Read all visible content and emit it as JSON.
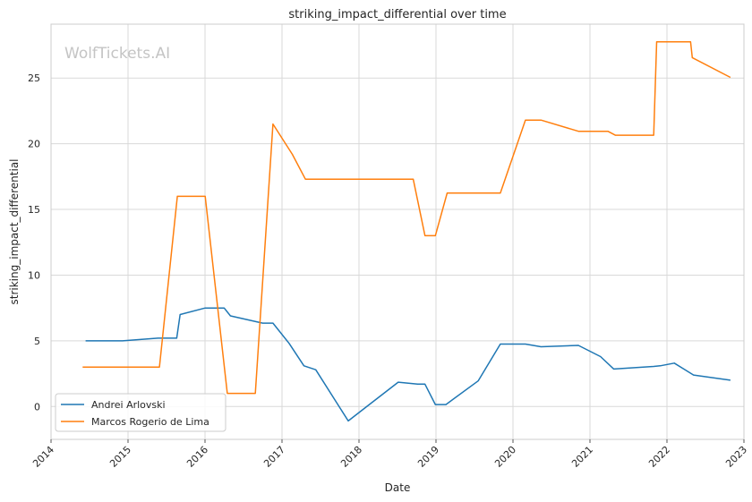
{
  "chart_data": {
    "type": "line",
    "title": "striking_impact_differential over time",
    "xlabel": "Date",
    "ylabel": "striking_impact_differential",
    "watermark": "WolfTickets.AI",
    "xlim": [
      "2014-01-01",
      "2023-01-01"
    ],
    "ylim": [
      -2.5,
      29.1
    ],
    "x_ticks": [
      "2014",
      "2015",
      "2016",
      "2017",
      "2018",
      "2019",
      "2020",
      "2021",
      "2022",
      "2023"
    ],
    "y_ticks": [
      0,
      5,
      10,
      15,
      20,
      25
    ],
    "grid": true,
    "legend_position": "lower-left",
    "series": [
      {
        "name": "Andrei Arlovski",
        "color": "#1f77b4",
        "points": [
          [
            "2014-06-14",
            5.0
          ],
          [
            "2014-12-06",
            5.0
          ],
          [
            "2015-05-23",
            5.2
          ],
          [
            "2015-08-20",
            5.2
          ],
          [
            "2015-09-05",
            7.0
          ],
          [
            "2016-01-02",
            7.5
          ],
          [
            "2016-04-01",
            7.5
          ],
          [
            "2016-05-01",
            6.9
          ],
          [
            "2016-10-01",
            6.35
          ],
          [
            "2016-11-19",
            6.35
          ],
          [
            "2017-02-04",
            4.8
          ],
          [
            "2017-04-15",
            3.1
          ],
          [
            "2017-06-10",
            2.8
          ],
          [
            "2017-11-11",
            -1.1
          ],
          [
            "2018-03-03",
            0.3
          ],
          [
            "2018-07-06",
            1.85
          ],
          [
            "2018-10-06",
            1.7
          ],
          [
            "2018-11-10",
            1.7
          ],
          [
            "2018-12-29",
            0.15
          ],
          [
            "2019-02-17",
            0.15
          ],
          [
            "2019-07-20",
            1.95
          ],
          [
            "2019-11-02",
            4.75
          ],
          [
            "2020-02-29",
            4.75
          ],
          [
            "2020-05-13",
            4.55
          ],
          [
            "2020-11-07",
            4.65
          ],
          [
            "2021-02-20",
            3.8
          ],
          [
            "2021-04-24",
            2.85
          ],
          [
            "2021-10-30",
            3.05
          ],
          [
            "2021-11-30",
            3.1
          ],
          [
            "2022-02-05",
            3.3
          ],
          [
            "2022-05-07",
            2.4
          ],
          [
            "2022-10-29",
            2.0
          ]
        ]
      },
      {
        "name": "Marcos Rogerio de Lima",
        "color": "#ff7f0e",
        "points": [
          [
            "2014-05-31",
            3.0
          ],
          [
            "2015-05-30",
            3.0
          ],
          [
            "2015-08-23",
            16.0
          ],
          [
            "2016-01-02",
            16.0
          ],
          [
            "2016-04-16",
            1.0
          ],
          [
            "2016-08-27",
            1.0
          ],
          [
            "2016-11-19",
            21.5
          ],
          [
            "2017-02-19",
            19.2
          ],
          [
            "2017-04-22",
            17.3
          ],
          [
            "2018-09-15",
            17.3
          ],
          [
            "2018-11-10",
            13.0
          ],
          [
            "2018-12-29",
            13.0
          ],
          [
            "2019-02-23",
            16.25
          ],
          [
            "2019-11-02",
            16.25
          ],
          [
            "2020-02-29",
            21.8
          ],
          [
            "2020-05-13",
            21.8
          ],
          [
            "2020-11-07",
            20.95
          ],
          [
            "2021-03-27",
            20.95
          ],
          [
            "2021-05-01",
            20.65
          ],
          [
            "2021-10-30",
            20.65
          ],
          [
            "2021-11-13",
            27.75
          ],
          [
            "2022-04-23",
            27.75
          ],
          [
            "2022-05-01",
            26.55
          ],
          [
            "2022-10-29",
            25.05
          ]
        ]
      }
    ]
  }
}
